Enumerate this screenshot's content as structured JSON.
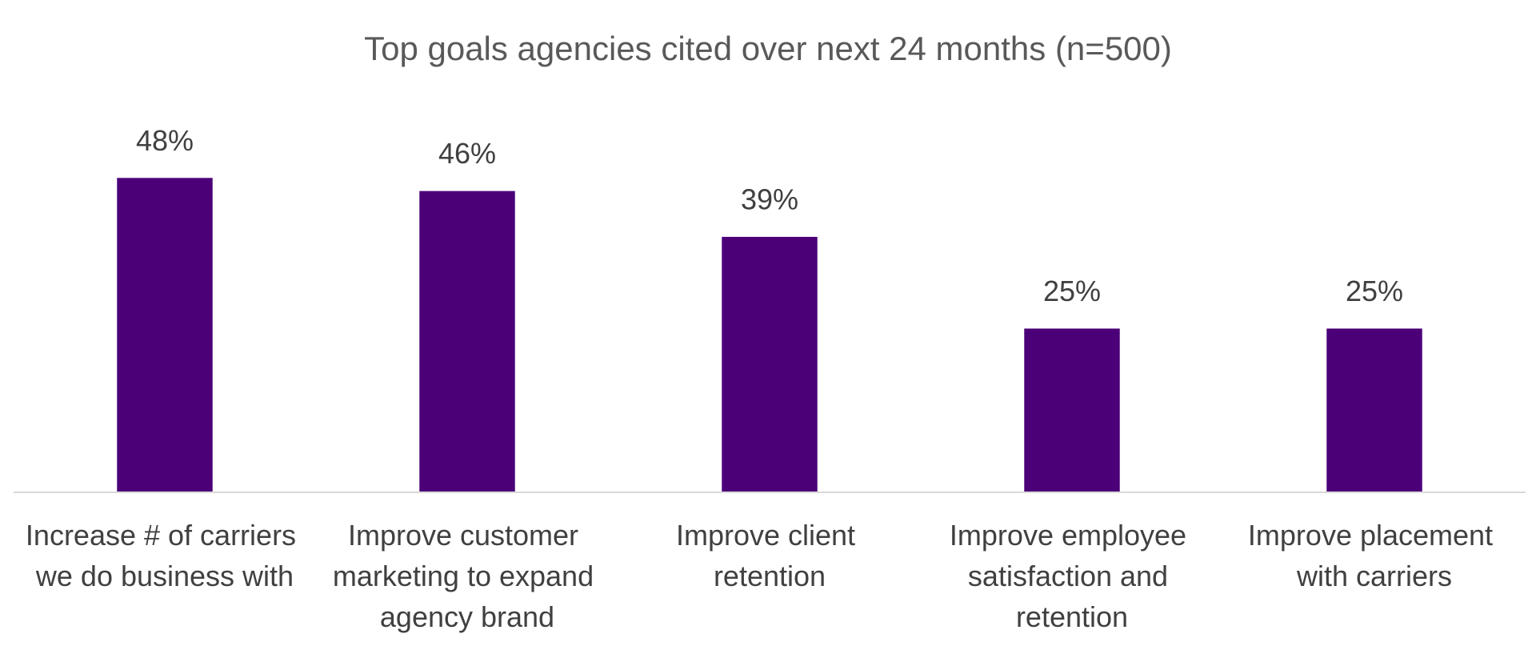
{
  "chart_data": {
    "type": "bar",
    "title": "Top goals agencies cited over next 24 months (n=500)",
    "categories": [
      "Increase # of carriers we do business with",
      "Improve customer marketing to expand agency brand",
      "Improve client retention",
      "Improve employee satisfaction and retention",
      "Improve placement with carriers"
    ],
    "values": [
      48,
      46,
      39,
      25,
      25
    ],
    "value_labels": [
      "48%",
      "46%",
      "39%",
      "25%",
      "25%"
    ],
    "color": "#4b0078",
    "ylim": [
      0,
      55
    ]
  }
}
